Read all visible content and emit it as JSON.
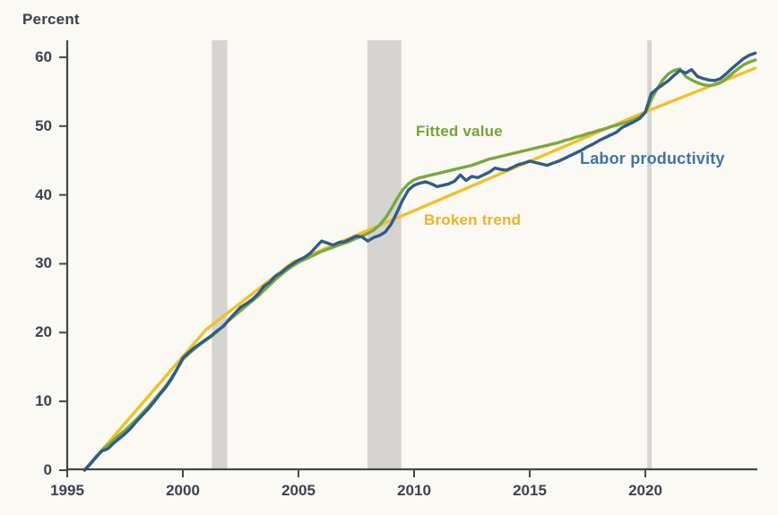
{
  "labels": {
    "y_axis_unit": "Percent",
    "fitted_value": "Fitted value",
    "labor_productivity": "Labor productivity",
    "broken_trend": "Broken trend"
  },
  "colors": {
    "background": "#fbf9f3",
    "recession_band": "#d5d4d1",
    "axis": "#43474b",
    "labor_productivity_line": "#2f5c8a",
    "fitted_value_line": "#79a83e",
    "broken_trend_line": "#f2bf2b"
  },
  "chart_data": {
    "type": "line",
    "title": "",
    "ylabel": "Percent",
    "xlabel": "",
    "x_axis": {
      "min": 1995,
      "max": 2024.85,
      "ticks": [
        1995,
        2000,
        2005,
        2010,
        2015,
        2020
      ]
    },
    "y_axis": {
      "min": 0,
      "max": 62.3,
      "ticks": [
        0,
        10,
        20,
        30,
        40,
        50,
        60
      ]
    },
    "grid": false,
    "legend_position": "inline-annotations",
    "recession_bands": [
      {
        "start": 2001.25,
        "end": 2001.92
      },
      {
        "start": 2007.98,
        "end": 2009.45
      },
      {
        "start": 2020.08,
        "end": 2020.27
      }
    ],
    "series": [
      {
        "name": "Labor productivity",
        "color": "#2f5c8a",
        "points": [
          [
            1995.75,
            0
          ],
          [
            1996,
            0.9
          ],
          [
            1996.25,
            1.9
          ],
          [
            1996.5,
            2.8
          ],
          [
            1996.75,
            3.1
          ],
          [
            1997,
            3.9
          ],
          [
            1997.25,
            4.6
          ],
          [
            1997.5,
            5.3
          ],
          [
            1997.75,
            6.1
          ],
          [
            1998,
            7.1
          ],
          [
            1998.25,
            8
          ],
          [
            1998.5,
            8.9
          ],
          [
            1998.75,
            9.9
          ],
          [
            1999,
            11
          ],
          [
            1999.25,
            12
          ],
          [
            1999.5,
            13.2
          ],
          [
            1999.75,
            14.7
          ],
          [
            2000,
            16.3
          ],
          [
            2000.25,
            17.1
          ],
          [
            2000.5,
            17.8
          ],
          [
            2000.75,
            18.4
          ],
          [
            2001,
            19
          ],
          [
            2001.25,
            19.6
          ],
          [
            2001.5,
            20.3
          ],
          [
            2001.75,
            20.9
          ],
          [
            2002,
            21.9
          ],
          [
            2002.25,
            22.8
          ],
          [
            2002.5,
            23.7
          ],
          [
            2002.75,
            24.2
          ],
          [
            2003,
            24.8
          ],
          [
            2003.25,
            25.6
          ],
          [
            2003.5,
            26.7
          ],
          [
            2003.75,
            27.3
          ],
          [
            2004,
            28.2
          ],
          [
            2004.25,
            28.7
          ],
          [
            2004.5,
            29.4
          ],
          [
            2004.75,
            30
          ],
          [
            2005,
            30.5
          ],
          [
            2005.25,
            30.9
          ],
          [
            2005.5,
            31.5
          ],
          [
            2005.75,
            32.4
          ],
          [
            2006,
            33.3
          ],
          [
            2006.25,
            33
          ],
          [
            2006.5,
            32.7
          ],
          [
            2006.75,
            33.1
          ],
          [
            2007,
            33.2
          ],
          [
            2007.25,
            33.6
          ],
          [
            2007.5,
            34
          ],
          [
            2007.75,
            33.9
          ],
          [
            2008,
            33.3
          ],
          [
            2008.25,
            33.8
          ],
          [
            2008.5,
            34.1
          ],
          [
            2008.75,
            34.6
          ],
          [
            2009,
            35.7
          ],
          [
            2009.25,
            37.4
          ],
          [
            2009.5,
            39.2
          ],
          [
            2009.75,
            40.7
          ],
          [
            2010,
            41.4
          ],
          [
            2010.25,
            41.7
          ],
          [
            2010.5,
            41.9
          ],
          [
            2010.75,
            41.6
          ],
          [
            2011,
            41.2
          ],
          [
            2011.25,
            41.4
          ],
          [
            2011.5,
            41.6
          ],
          [
            2011.75,
            42
          ],
          [
            2012,
            42.9
          ],
          [
            2012.25,
            42.1
          ],
          [
            2012.5,
            42.7
          ],
          [
            2012.75,
            42.5
          ],
          [
            2013,
            42.9
          ],
          [
            2013.25,
            43.3
          ],
          [
            2013.5,
            43.9
          ],
          [
            2013.75,
            43.7
          ],
          [
            2014,
            43.6
          ],
          [
            2014.25,
            44
          ],
          [
            2014.5,
            44.4
          ],
          [
            2014.75,
            44.6
          ],
          [
            2015,
            44.9
          ],
          [
            2015.25,
            44.7
          ],
          [
            2015.5,
            44.5
          ],
          [
            2015.75,
            44.3
          ],
          [
            2016,
            44.6
          ],
          [
            2016.25,
            44.9
          ],
          [
            2016.5,
            45.3
          ],
          [
            2016.75,
            45.7
          ],
          [
            2017,
            46.1
          ],
          [
            2017.25,
            46.5
          ],
          [
            2017.5,
            47
          ],
          [
            2017.75,
            47.4
          ],
          [
            2018,
            47.9
          ],
          [
            2018.25,
            48.3
          ],
          [
            2018.5,
            48.7
          ],
          [
            2018.75,
            49.1
          ],
          [
            2019,
            49.8
          ],
          [
            2019.25,
            50.2
          ],
          [
            2019.5,
            50.6
          ],
          [
            2019.75,
            51.1
          ],
          [
            2020,
            52
          ],
          [
            2020.25,
            54.7
          ],
          [
            2020.5,
            55.4
          ],
          [
            2020.75,
            56
          ],
          [
            2021,
            56.6
          ],
          [
            2021.25,
            57.4
          ],
          [
            2021.5,
            58.1
          ],
          [
            2021.75,
            57.7
          ],
          [
            2022,
            58.2
          ],
          [
            2022.25,
            57.2
          ],
          [
            2022.5,
            56.9
          ],
          [
            2022.75,
            56.7
          ],
          [
            2023,
            56.6
          ],
          [
            2023.25,
            56.9
          ],
          [
            2023.5,
            57.6
          ],
          [
            2023.75,
            58.4
          ],
          [
            2024,
            59.1
          ],
          [
            2024.25,
            59.8
          ],
          [
            2024.5,
            60.3
          ],
          [
            2024.75,
            60.6
          ]
        ]
      },
      {
        "name": "Fitted value",
        "color": "#79a83e",
        "points": [
          [
            1995.75,
            0
          ],
          [
            1996,
            1
          ],
          [
            1996.25,
            2
          ],
          [
            1996.5,
            2.9
          ],
          [
            1996.75,
            3.6
          ],
          [
            1997,
            4.4
          ],
          [
            1997.25,
            5.1
          ],
          [
            1997.5,
            5.8
          ],
          [
            1997.75,
            6.6
          ],
          [
            1998,
            7.4
          ],
          [
            1998.25,
            8.3
          ],
          [
            1998.5,
            9.2
          ],
          [
            1998.75,
            10.2
          ],
          [
            1999,
            11.2
          ],
          [
            1999.25,
            12.2
          ],
          [
            1999.5,
            13.4
          ],
          [
            1999.75,
            14.7
          ],
          [
            2000,
            16.1
          ],
          [
            2000.25,
            16.9
          ],
          [
            2000.5,
            17.6
          ],
          [
            2000.75,
            18.3
          ],
          [
            2001,
            18.9
          ],
          [
            2001.25,
            19.5
          ],
          [
            2001.5,
            20.2
          ],
          [
            2001.75,
            21
          ],
          [
            2002,
            21.8
          ],
          [
            2002.25,
            22.5
          ],
          [
            2002.5,
            23.2
          ],
          [
            2002.75,
            23.9
          ],
          [
            2003,
            24.6
          ],
          [
            2003.25,
            25.3
          ],
          [
            2003.5,
            26.1
          ],
          [
            2003.75,
            26.9
          ],
          [
            2004,
            27.7
          ],
          [
            2004.25,
            28.4
          ],
          [
            2004.5,
            29.1
          ],
          [
            2004.75,
            29.7
          ],
          [
            2005,
            30.2
          ],
          [
            2005.25,
            30.6
          ],
          [
            2005.5,
            31
          ],
          [
            2005.75,
            31.4
          ],
          [
            2006,
            31.8
          ],
          [
            2006.25,
            32.1
          ],
          [
            2006.5,
            32.4
          ],
          [
            2006.75,
            32.7
          ],
          [
            2007,
            33
          ],
          [
            2007.25,
            33.3
          ],
          [
            2007.5,
            33.7
          ],
          [
            2007.75,
            34
          ],
          [
            2008,
            34.4
          ],
          [
            2008.25,
            34.9
          ],
          [
            2008.5,
            35.6
          ],
          [
            2008.75,
            36.6
          ],
          [
            2009,
            37.9
          ],
          [
            2009.25,
            39.4
          ],
          [
            2009.5,
            40.7
          ],
          [
            2009.75,
            41.6
          ],
          [
            2010,
            42.2
          ],
          [
            2010.25,
            42.5
          ],
          [
            2010.5,
            42.7
          ],
          [
            2010.75,
            42.9
          ],
          [
            2011,
            43.1
          ],
          [
            2011.25,
            43.3
          ],
          [
            2011.5,
            43.5
          ],
          [
            2011.75,
            43.7
          ],
          [
            2012,
            43.9
          ],
          [
            2012.25,
            44.1
          ],
          [
            2012.5,
            44.3
          ],
          [
            2012.75,
            44.6
          ],
          [
            2013,
            44.9
          ],
          [
            2013.25,
            45.2
          ],
          [
            2013.5,
            45.4
          ],
          [
            2013.75,
            45.6
          ],
          [
            2014,
            45.8
          ],
          [
            2014.25,
            46
          ],
          [
            2014.5,
            46.2
          ],
          [
            2014.75,
            46.4
          ],
          [
            2015,
            46.6
          ],
          [
            2015.25,
            46.8
          ],
          [
            2015.5,
            47
          ],
          [
            2015.75,
            47.2
          ],
          [
            2016,
            47.4
          ],
          [
            2016.25,
            47.6
          ],
          [
            2016.5,
            47.9
          ],
          [
            2016.75,
            48.1
          ],
          [
            2017,
            48.4
          ],
          [
            2017.25,
            48.6
          ],
          [
            2017.5,
            48.9
          ],
          [
            2017.75,
            49.1
          ],
          [
            2018,
            49.4
          ],
          [
            2018.25,
            49.6
          ],
          [
            2018.5,
            49.9
          ],
          [
            2018.75,
            50.1
          ],
          [
            2019,
            50.4
          ],
          [
            2019.25,
            50.6
          ],
          [
            2019.5,
            50.9
          ],
          [
            2019.75,
            51.3
          ],
          [
            2020,
            52
          ],
          [
            2020.25,
            53.8
          ],
          [
            2020.5,
            55.4
          ],
          [
            2020.75,
            56.7
          ],
          [
            2021,
            57.6
          ],
          [
            2021.25,
            58.1
          ],
          [
            2021.5,
            58.3
          ],
          [
            2021.75,
            57.2
          ],
          [
            2022,
            56.7
          ],
          [
            2022.25,
            56.3
          ],
          [
            2022.5,
            56
          ],
          [
            2022.75,
            55.9
          ],
          [
            2023,
            56
          ],
          [
            2023.25,
            56.3
          ],
          [
            2023.5,
            56.9
          ],
          [
            2023.75,
            57.6
          ],
          [
            2024,
            58.3
          ],
          [
            2024.25,
            58.9
          ],
          [
            2024.5,
            59.3
          ],
          [
            2024.75,
            59.6
          ]
        ]
      },
      {
        "name": "Broken trend",
        "color": "#f2bf2b",
        "points": [
          [
            1995.75,
            0
          ],
          [
            2001,
            20.4
          ],
          [
            2004.75,
            30.2
          ],
          [
            2009.5,
            37
          ],
          [
            2020.1,
            52.2
          ],
          [
            2024.75,
            58.4
          ]
        ]
      }
    ]
  }
}
